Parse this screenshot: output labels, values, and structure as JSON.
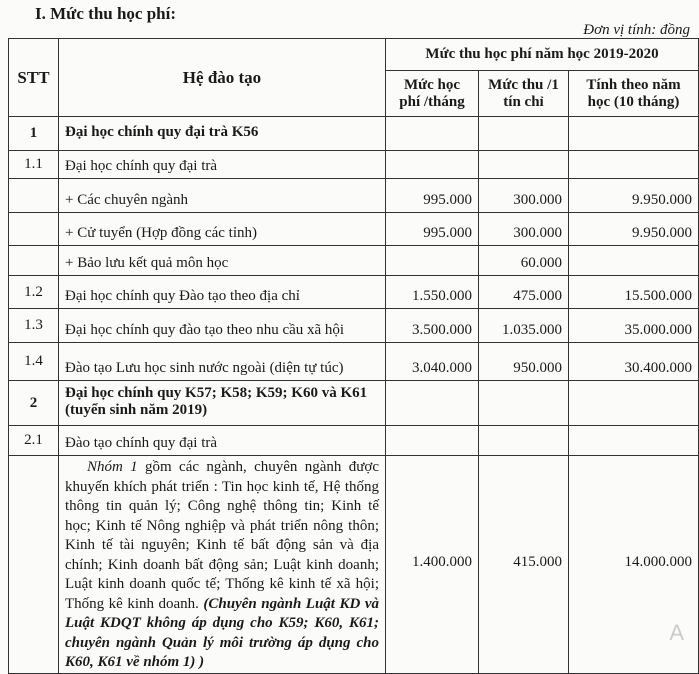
{
  "section_title": "I. Mức thu học phí:",
  "unit": "Đơn vị tính: đồng",
  "header": {
    "stt": "STT",
    "he": "Hệ đào tạo",
    "group": "Mức thu học phí năm học 2019-2020",
    "c1": "Mức học phí /tháng",
    "c2": "Mức thu /1 tín chỉ",
    "c3": "Tính theo năm học (10 tháng)"
  },
  "rows": [
    {
      "stt": "1",
      "name": "Đại học chính quy đại trà K56",
      "m": "",
      "t": "",
      "y": ""
    },
    {
      "stt": "1.1",
      "name": "Đại học chính quy đại trà",
      "m": "",
      "t": "",
      "y": ""
    },
    {
      "stt": "",
      "name": "+ Các chuyên ngành",
      "m": "995.000",
      "t": "300.000",
      "y": "9.950.000"
    },
    {
      "stt": "",
      "name": "+ Cử tuyển (Hợp đồng các tỉnh)",
      "m": "995.000",
      "t": "300.000",
      "y": "9.950.000"
    },
    {
      "stt": "",
      "name": "+ Bảo lưu kết quả môn học",
      "m": "",
      "t": "60.000",
      "y": ""
    },
    {
      "stt": "1.2",
      "name": "Đại học chính quy Đào tạo theo địa chỉ",
      "m": "1.550.000",
      "t": "475.000",
      "y": "15.500.000"
    },
    {
      "stt": "1.3",
      "name": "Đại học chính quy đào tạo theo nhu cầu xã hội",
      "m": "3.500.000",
      "t": "1.035.000",
      "y": "35.000.000"
    },
    {
      "stt": "1.4",
      "name": "Đào tạo Lưu học sinh nước ngoài (diện tự túc)",
      "m": "3.040.000",
      "t": "950.000",
      "y": "30.400.000"
    },
    {
      "stt": "2",
      "name": "Đại học chính quy K57; K58; K59; K60 và K61 (tuyển sinh năm 2019)",
      "m": "",
      "t": "",
      "y": ""
    },
    {
      "stt": "2.1",
      "name": "Đào tạo chính quy đại trà",
      "m": "",
      "t": "",
      "y": ""
    }
  ],
  "group1": {
    "label": "Nhóm 1",
    "text": " gồm các ngành, chuyên ngành được khuyến khích phát triển : Tin học kinh tế, Hệ thống thông tin quản lý; Công nghệ thông tin; Kinh tế học; Kinh tế Nông nghiệp và phát triển nông thôn; Kinh tế tài nguyên; Kinh tế bất động sản và địa chính; Kinh doanh bất động sản; Luật kinh doanh; Luật kinh doanh quốc tế; Thống kê kinh tế xã hội; Thống kê kinh doanh. ",
    "note": "(Chuyên ngành Luật KD và Luật KDQT không áp dụng cho K59; K60, K61; chuyên ngành Quản lý môi trường áp dụng cho K60, K61 về nhóm 1) )",
    "m": "1.400.000",
    "t": "415.000",
    "y": "14.000.000"
  },
  "watermark": "A"
}
